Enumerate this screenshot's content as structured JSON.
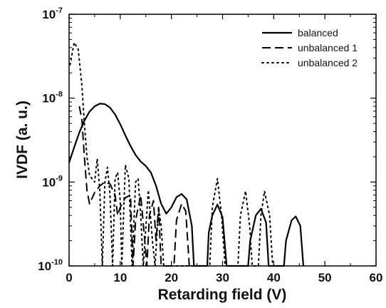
{
  "chart_data": {
    "type": "line",
    "xlabel": "Retarding field (V)",
    "ylabel": "IVDF (a. u.)",
    "xlim": [
      0,
      60
    ],
    "ylim": [
      1e-10,
      1e-07
    ],
    "yscale": "log",
    "x_ticks": [
      0,
      10,
      20,
      30,
      40,
      50,
      60
    ],
    "y_ticks": [
      {
        "value": 1e-10,
        "base": "10",
        "exponent": "-10"
      },
      {
        "value": 1e-09,
        "base": "10",
        "exponent": "-9"
      },
      {
        "value": 1e-08,
        "base": "10",
        "exponent": "-8"
      },
      {
        "value": 1e-07,
        "base": "10",
        "exponent": "-7"
      }
    ],
    "legend_position": "top-right",
    "series": [
      {
        "name": "balanced",
        "style": "solid",
        "color": "#000000",
        "points": [
          [
            0,
            1.7e-09
          ],
          [
            1,
            2.6e-09
          ],
          [
            2,
            3.9e-09
          ],
          [
            3,
            5.4e-09
          ],
          [
            4,
            6.9e-09
          ],
          [
            5,
            8e-09
          ],
          [
            6,
            8.6e-09
          ],
          [
            7,
            8.5e-09
          ],
          [
            8,
            7.7e-09
          ],
          [
            9,
            6.4e-09
          ],
          [
            10,
            4.9e-09
          ],
          [
            11,
            3.6e-09
          ],
          [
            12,
            2.7e-09
          ],
          [
            13,
            2.1e-09
          ],
          [
            14,
            1.75e-09
          ],
          [
            15,
            1.55e-09
          ],
          [
            16,
            1.3e-09
          ],
          [
            17,
            9e-10
          ],
          [
            18,
            5.5e-10
          ],
          [
            19,
            4.2e-10
          ],
          [
            20,
            5e-10
          ],
          [
            21,
            6.6e-10
          ],
          [
            22,
            7.2e-10
          ],
          [
            23,
            6.2e-10
          ],
          [
            24,
            3e-10
          ],
          [
            24.4,
            1e-10
          ],
          [
            27,
            1e-10
          ],
          [
            27.3,
            2.5e-10
          ],
          [
            28,
            4e-10
          ],
          [
            29,
            5.4e-10
          ],
          [
            30,
            3.8e-10
          ],
          [
            30.8,
            1e-10
          ],
          [
            35,
            1e-10
          ],
          [
            35.4,
            2e-10
          ],
          [
            36.5,
            4e-10
          ],
          [
            37.5,
            4.8e-10
          ],
          [
            38.5,
            3.3e-10
          ],
          [
            39,
            1e-10
          ],
          [
            42,
            1e-10
          ],
          [
            42.4,
            2e-10
          ],
          [
            43.5,
            3.5e-10
          ],
          [
            44.3,
            3.9e-10
          ],
          [
            45.2,
            3e-10
          ],
          [
            45.8,
            1e-10
          ]
        ]
      },
      {
        "name": "unbalanced 1",
        "style": "dashed",
        "color": "#000000",
        "points": [
          [
            2,
            8e-09
          ],
          [
            2.5,
            5.5e-09
          ],
          [
            3,
            2e-09
          ],
          [
            3.5,
            8e-10
          ],
          [
            4,
            5.5e-10
          ],
          [
            5,
            7.5e-10
          ],
          [
            6,
            9e-10
          ],
          [
            7,
            1e-09
          ],
          [
            8,
            9.5e-10
          ],
          [
            9,
            7e-10
          ],
          [
            9.5,
            4e-10
          ],
          [
            10,
            5e-10
          ],
          [
            11,
            6.5e-10
          ],
          [
            12,
            7e-10
          ],
          [
            12.5,
            1e-10
          ],
          [
            13,
            3.5e-10
          ],
          [
            14,
            7e-10
          ],
          [
            14.8,
            2e-10
          ],
          [
            15.2,
            1e-10
          ],
          [
            15.7,
            4e-10
          ],
          [
            16.5,
            6e-10
          ],
          [
            17,
            2e-10
          ],
          [
            17.5,
            5e-10
          ],
          [
            18,
            1e-10
          ],
          [
            20.5,
            1e-10
          ],
          [
            21,
            3.5e-10
          ],
          [
            22,
            5.5e-10
          ],
          [
            22.8,
            4.5e-10
          ],
          [
            23.5,
            1e-10
          ]
        ]
      },
      {
        "name": "unbalanced 2",
        "style": "dotted",
        "color": "#000000",
        "points": [
          [
            0.2,
            2.5e-08
          ],
          [
            1,
            4.6e-08
          ],
          [
            1.8,
            3.8e-08
          ],
          [
            2.5,
            1.4e-08
          ],
          [
            3,
            5e-09
          ],
          [
            3.5,
            2e-09
          ],
          [
            4,
            1.2e-09
          ],
          [
            5,
            1e-09
          ],
          [
            5.5,
            1.9e-09
          ],
          [
            6,
            8e-10
          ],
          [
            6.5,
            1e-10
          ],
          [
            7,
            1e-09
          ],
          [
            7.5,
            1.5e-09
          ],
          [
            8,
            7e-10
          ],
          [
            8.5,
            1e-10
          ],
          [
            9,
            1.1e-09
          ],
          [
            9.5,
            1.3e-09
          ],
          [
            10,
            6e-10
          ],
          [
            10.3,
            1e-10
          ],
          [
            11,
            1.6e-09
          ],
          [
            11.7,
            1.1e-09
          ],
          [
            12.3,
            1e-10
          ],
          [
            13,
            1e-09
          ],
          [
            13.5,
            1.1e-09
          ],
          [
            14,
            4e-10
          ],
          [
            14.5,
            1e-10
          ],
          [
            15.5,
            8e-10
          ],
          [
            16.3,
            2e-10
          ],
          [
            16.8,
            1e-10
          ],
          [
            17.5,
            5e-10
          ],
          [
            18,
            3e-10
          ],
          [
            18.5,
            1e-10
          ],
          [
            27.5,
            1e-10
          ],
          [
            28,
            5e-10
          ],
          [
            29,
            1.1e-09
          ],
          [
            29.8,
            4e-10
          ],
          [
            30.5,
            1e-10
          ],
          [
            33,
            1e-10
          ],
          [
            33.5,
            4e-10
          ],
          [
            34.5,
            7.8e-10
          ],
          [
            35.3,
            3e-10
          ],
          [
            35.8,
            1e-10
          ],
          [
            37,
            1e-10
          ],
          [
            37.5,
            4e-10
          ],
          [
            38.2,
            7.8e-10
          ],
          [
            39.2,
            4e-10
          ],
          [
            39.8,
            1e-10
          ]
        ]
      }
    ]
  }
}
